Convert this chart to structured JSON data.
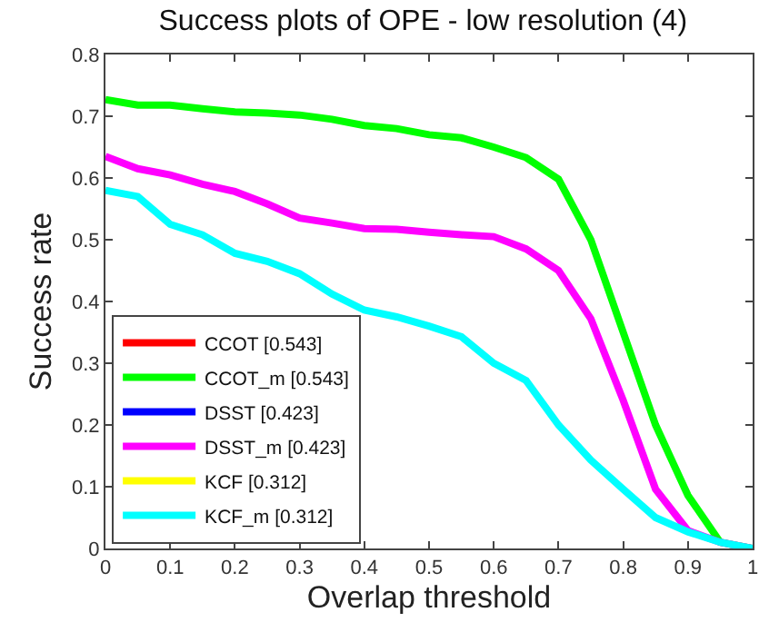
{
  "chart_data": {
    "type": "line",
    "title": "Success plots of OPE - low resolution (4)",
    "xlabel": "Overlap threshold",
    "ylabel": "Success rate",
    "x": [
      0,
      0.05,
      0.1,
      0.15,
      0.2,
      0.25,
      0.3,
      0.35,
      0.4,
      0.45,
      0.5,
      0.55,
      0.6,
      0.65,
      0.7,
      0.75,
      0.8,
      0.85,
      0.9,
      0.95,
      1
    ],
    "series": [
      {
        "name": "CCOT [0.543]",
        "color": "#ff0000",
        "values": [
          null,
          null,
          null,
          null,
          null,
          null,
          null,
          null,
          null,
          null,
          null,
          null,
          null,
          null,
          null,
          null,
          null,
          null,
          null,
          null,
          null
        ]
      },
      {
        "name": "CCOT_m [0.543]",
        "color": "#00ff00",
        "values": [
          0.727,
          0.718,
          0.718,
          0.712,
          0.707,
          0.705,
          0.702,
          0.695,
          0.685,
          0.68,
          0.67,
          0.665,
          0.65,
          0.633,
          0.598,
          0.5,
          0.35,
          0.2,
          0.086,
          0.01,
          0
        ]
      },
      {
        "name": "DSST [0.423]",
        "color": "#0000ff",
        "values": [
          null,
          null,
          null,
          null,
          null,
          null,
          null,
          null,
          null,
          null,
          null,
          null,
          null,
          null,
          null,
          null,
          null,
          null,
          null,
          null,
          null
        ]
      },
      {
        "name": "DSST_m [0.423]",
        "color": "#ff00ff",
        "values": [
          0.635,
          0.615,
          0.605,
          0.59,
          0.578,
          0.558,
          0.535,
          0.527,
          0.518,
          0.517,
          0.512,
          0.508,
          0.505,
          0.485,
          0.45,
          0.372,
          0.24,
          0.096,
          0.029,
          0.01,
          0
        ]
      },
      {
        "name": "KCF [0.312]",
        "color": "#ffff00",
        "values": [
          null,
          null,
          null,
          null,
          null,
          null,
          null,
          null,
          null,
          null,
          null,
          null,
          null,
          null,
          null,
          null,
          null,
          null,
          null,
          null,
          null
        ]
      },
      {
        "name": "KCF_m [0.312]",
        "color": "#00ffff",
        "values": [
          0.58,
          0.57,
          0.525,
          0.508,
          0.478,
          0.465,
          0.445,
          0.412,
          0.386,
          0.375,
          0.36,
          0.343,
          0.3,
          0.272,
          0.2,
          0.143,
          0.096,
          0.05,
          0.027,
          0.01,
          0
        ]
      }
    ],
    "xlim": [
      0,
      1
    ],
    "xticks": [
      0,
      0.1,
      0.2,
      0.3,
      0.4,
      0.5,
      0.6,
      0.7,
      0.8,
      0.9,
      1
    ],
    "ylim": [
      0,
      0.8
    ],
    "yticks": [
      0,
      0.1,
      0.2,
      0.3,
      0.4,
      0.5,
      0.6,
      0.7,
      0.8
    ],
    "legend": "bottom left",
    "marker": "none",
    "line_style": "solid"
  }
}
